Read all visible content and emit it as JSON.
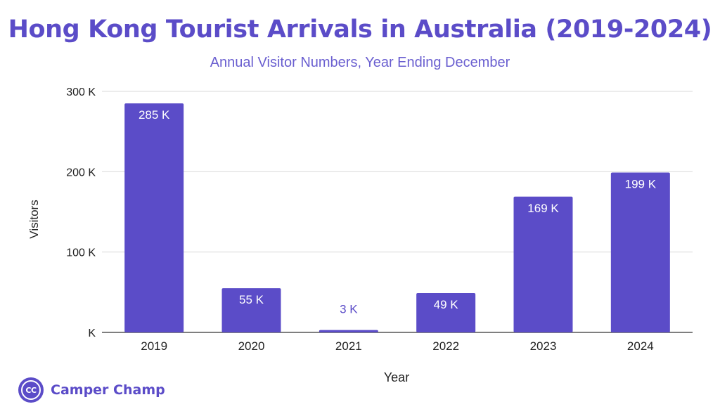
{
  "header": {
    "title": "Hong Kong Tourist Arrivals in Australia (2019-2024)",
    "subtitle": "Annual Visitor Numbers, Year Ending December"
  },
  "brand": {
    "logo_text": "CC",
    "name": "Camper Champ"
  },
  "colors": {
    "accent": "#5b4cc8",
    "bar": "#5b4cc8",
    "grid": "#d9d9d9",
    "axis_text": "#222222",
    "label_inside": "#ffffff",
    "label_outside": "#5b4cc8"
  },
  "chart_data": {
    "type": "bar",
    "title": "Hong Kong Tourist Arrivals in Australia (2019-2024)",
    "subtitle": "Annual Visitor Numbers, Year Ending December",
    "xlabel": "Year",
    "ylabel": "Visitors",
    "categories": [
      "2019",
      "2020",
      "2021",
      "2022",
      "2023",
      "2024"
    ],
    "values": [
      285000,
      55000,
      3000,
      49000,
      169000,
      199000
    ],
    "data_labels": [
      "285 K",
      "55 K",
      "3 K",
      "49 K",
      "169 K",
      "199 K"
    ],
    "ylim": [
      0,
      300000
    ],
    "yticks": [
      0,
      100000,
      200000,
      300000
    ],
    "ytick_labels": [
      "K",
      "100 K",
      "200 K",
      "300 K"
    ],
    "grid": true,
    "legend": "none"
  }
}
